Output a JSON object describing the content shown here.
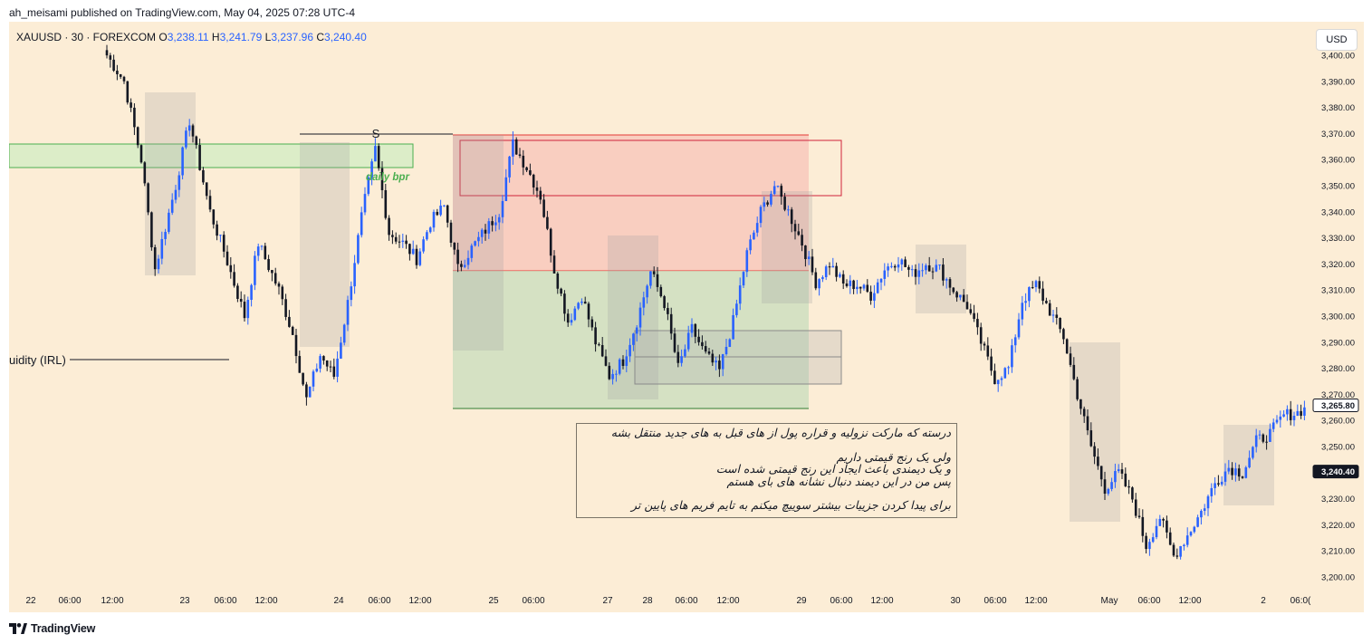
{
  "header": {
    "text": "ah_meisami published on TradingView.com, May 04, 2025 07:28 UTC-4"
  },
  "legend": {
    "symbol": "XAUUSD · 30 · FOREXCOM",
    "open_label": "O",
    "open": "3,238.11",
    "high_label": "H",
    "high": "3,241.79",
    "low_label": "L",
    "low": "3,237.96",
    "close_label": "C",
    "close": "3,240.40"
  },
  "currency_button": "USD",
  "brand": {
    "name": "TradingView"
  },
  "annotations": {
    "s_label": "S",
    "daily_bpr_label": "daily bpr",
    "irl_label": "uidity (IRL)",
    "note_lines": [
      "درسته که مارکت نزولیه و قراره پول از های قبل به های جدید منتقل بشه",
      "",
      "ولی یک رنج قیمتی داریم",
      "و یک دیمندی باعث ایجاد این رنج قیمتی شده است",
      "پس من در این دیمند دنبال نشانه های بای هستم",
      "",
      "برای پیدا کردن جزییات بیشتر سوییچ میکنم به تایم فریم های پایین تر"
    ]
  },
  "colors": {
    "background": "#fcedd6",
    "up_candle": "#2962ff",
    "down_candle": "#131722",
    "supply_zone": "#f7b9b0",
    "demand_zone": "#c8dcbc",
    "daily_bpr": "#4caf50",
    "last_price_tag": "#131722"
  },
  "chart_data": {
    "type": "candlestick",
    "symbol": "XAUUSD",
    "timeframe": "30",
    "y_axis": {
      "ticks": [
        "3,200.00",
        "3,210.00",
        "3,220.00",
        "3,230.00",
        "3,240.00",
        "3,250.00",
        "3,260.00",
        "3,270.00",
        "3,280.00",
        "3,290.00",
        "3,300.00",
        "3,310.00",
        "3,320.00",
        "3,330.00",
        "3,340.00",
        "3,350.00",
        "3,360.00",
        "3,370.00",
        "3,380.00",
        "3,390.00",
        "3,400.00"
      ],
      "range": [
        3197,
        3418
      ]
    },
    "x_axis": {
      "ticks": [
        "22",
        "06:00",
        "12:00",
        "23",
        "06:00",
        "12:00",
        "24",
        "06:00",
        "12:00",
        "25",
        "06:00",
        "27",
        "28",
        "06:00",
        "12:00",
        "29",
        "06:00",
        "12:00",
        "30",
        "06:00",
        "12:00",
        "May",
        "06:00",
        "12:00",
        "2",
        "06:0("
      ]
    },
    "price_tags": {
      "reference": "3,265.80",
      "last": "3,240.40"
    },
    "price_path": [
      [
        0,
        3400
      ],
      [
        5,
        3390
      ],
      [
        10,
        3360
      ],
      [
        14,
        3318
      ],
      [
        20,
        3350
      ],
      [
        24,
        3375
      ],
      [
        30,
        3340
      ],
      [
        34,
        3325
      ],
      [
        40,
        3300
      ],
      [
        44,
        3328
      ],
      [
        50,
        3310
      ],
      [
        54,
        3293
      ],
      [
        58,
        3268
      ],
      [
        62,
        3285
      ],
      [
        66,
        3277
      ],
      [
        70,
        3305
      ],
      [
        74,
        3338
      ],
      [
        78,
        3364
      ],
      [
        82,
        3332
      ],
      [
        86,
        3328
      ],
      [
        90,
        3322
      ],
      [
        94,
        3336
      ],
      [
        98,
        3342
      ],
      [
        102,
        3318
      ],
      [
        106,
        3326
      ],
      [
        110,
        3333
      ],
      [
        114,
        3340
      ],
      [
        118,
        3366
      ],
      [
        122,
        3357
      ],
      [
        126,
        3346
      ],
      [
        130,
        3318
      ],
      [
        134,
        3298
      ],
      [
        138,
        3308
      ],
      [
        142,
        3290
      ],
      [
        146,
        3277
      ],
      [
        150,
        3283
      ],
      [
        154,
        3298
      ],
      [
        158,
        3317
      ],
      [
        162,
        3305
      ],
      [
        166,
        3280
      ],
      [
        170,
        3295
      ],
      [
        174,
        3285
      ],
      [
        178,
        3279
      ],
      [
        182,
        3298
      ],
      [
        186,
        3324
      ],
      [
        190,
        3340
      ],
      [
        194,
        3350
      ],
      [
        198,
        3340
      ],
      [
        202,
        3328
      ],
      [
        206,
        3313
      ],
      [
        210,
        3320
      ],
      [
        214,
        3312
      ],
      [
        218,
        3312
      ],
      [
        222,
        3308
      ],
      [
        226,
        3318
      ],
      [
        230,
        3322
      ],
      [
        234,
        3316
      ],
      [
        238,
        3320
      ],
      [
        242,
        3318
      ],
      [
        246,
        3310
      ],
      [
        250,
        3304
      ],
      [
        254,
        3290
      ],
      [
        258,
        3276
      ],
      [
        262,
        3280
      ],
      [
        266,
        3306
      ],
      [
        270,
        3312
      ],
      [
        274,
        3302
      ],
      [
        278,
        3292
      ],
      [
        282,
        3270
      ],
      [
        286,
        3250
      ],
      [
        290,
        3234
      ],
      [
        294,
        3240
      ],
      [
        298,
        3230
      ],
      [
        302,
        3212
      ],
      [
        306,
        3223
      ],
      [
        310,
        3208
      ],
      [
        314,
        3216
      ],
      [
        318,
        3225
      ],
      [
        322,
        3236
      ],
      [
        326,
        3242
      ],
      [
        330,
        3240
      ],
      [
        334,
        3252
      ],
      [
        338,
        3255
      ],
      [
        342,
        3262
      ],
      [
        346,
        3263
      ],
      [
        348,
        3265
      ]
    ]
  }
}
